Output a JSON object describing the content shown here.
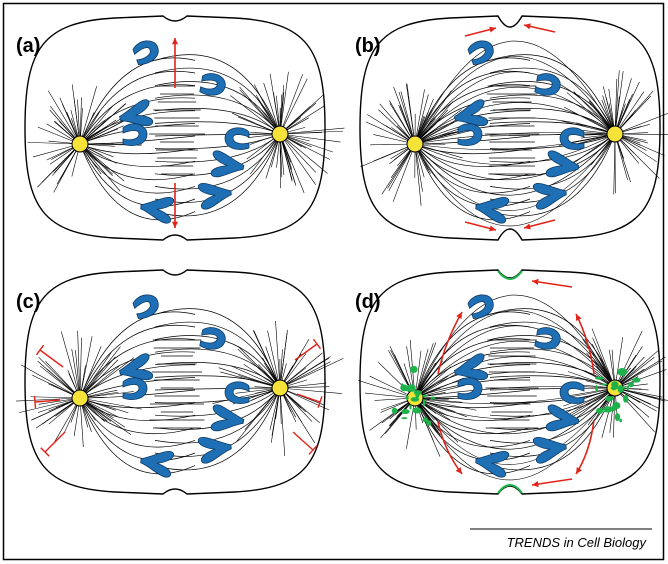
{
  "panels": [
    {
      "label": "(a)"
    },
    {
      "label": "(b)"
    },
    {
      "label": "(c)"
    },
    {
      "label": "(d)"
    }
  ],
  "footer": {
    "source": "TRENDS in Cell Biology"
  }
}
